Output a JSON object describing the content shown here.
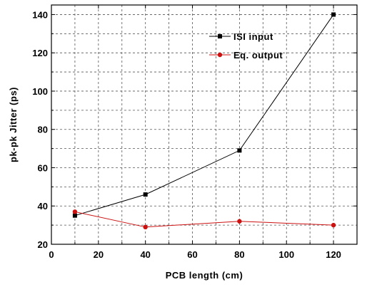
{
  "chart_data": {
    "type": "line",
    "xlabel": "PCB length (cm)",
    "ylabel": "pk-pk Jitter  (ps)",
    "xlim": [
      0,
      130
    ],
    "ylim": [
      20,
      145
    ],
    "xticks": [
      0,
      20,
      40,
      60,
      80,
      100,
      120
    ],
    "yticks": [
      20,
      40,
      60,
      80,
      100,
      120,
      140
    ],
    "xtick_labels": [
      "0",
      "20",
      "40",
      "60",
      "80",
      "100",
      "120"
    ],
    "ytick_labels": [
      "20",
      "40",
      "60",
      "80",
      "100",
      "120",
      "140"
    ],
    "grid": true,
    "legend_position": "top-right",
    "x": [
      10,
      40,
      80,
      120
    ],
    "series": [
      {
        "name": "ISI input",
        "color": "#000000",
        "marker": "square",
        "values": [
          35,
          46,
          69,
          140
        ]
      },
      {
        "name": "Eq. output",
        "color": "#cc1111",
        "marker": "circle",
        "values": [
          37,
          29,
          32,
          30
        ]
      }
    ]
  }
}
